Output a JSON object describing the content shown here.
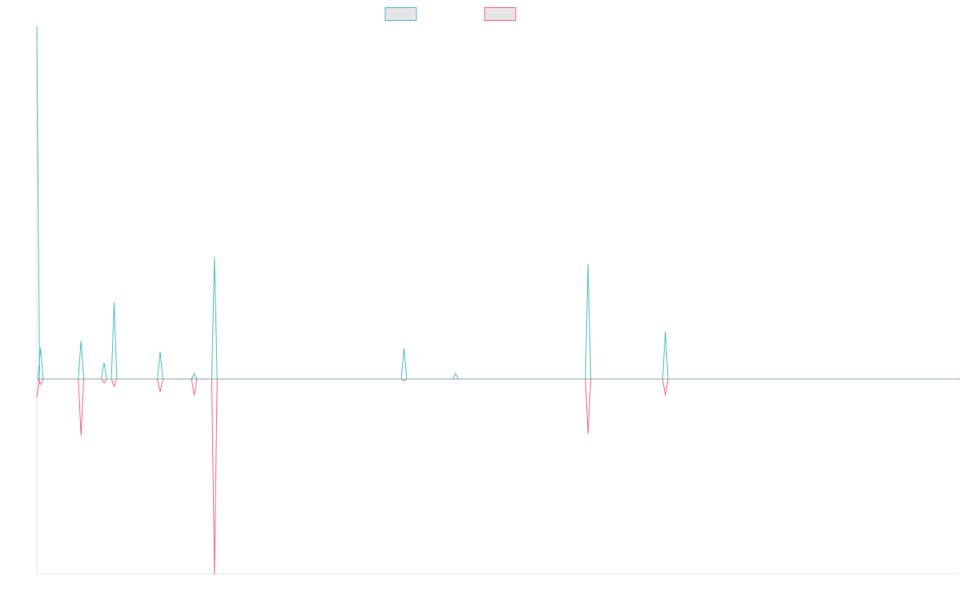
{
  "chart_data": {
    "type": "line",
    "title": "",
    "xlabel": "",
    "ylabel": "",
    "grid": false,
    "legend_position": "top-center",
    "x": [
      0,
      4,
      48,
      73,
      84,
      134,
      171,
      193,
      276,
      399,
      455,
      599,
      683,
      775,
      800,
      900,
      950,
      1000
    ],
    "ylim": [
      -1.1,
      1.9
    ],
    "series": [
      {
        "color": "#4bc0c0",
        "fill": "#e5e5e5",
        "values": [
          1.93,
          0.17,
          0.21,
          0.09,
          0.42,
          0.15,
          0.03,
          0.67,
          0.0,
          0.17,
          0.03,
          0.63,
          0.26,
          0.0,
          0.0,
          0.0,
          0.0,
          0.0
        ]
      },
      {
        "color": "#ff6384",
        "fill": "#e5e5e5",
        "values": [
          -0.1,
          -0.03,
          -0.31,
          -0.02,
          -0.04,
          -0.07,
          -0.09,
          -1.07,
          0.0,
          -0.01,
          0.0,
          -0.3,
          -0.09,
          0.0,
          0.0,
          0.0,
          0.0,
          0.0
        ]
      }
    ]
  }
}
